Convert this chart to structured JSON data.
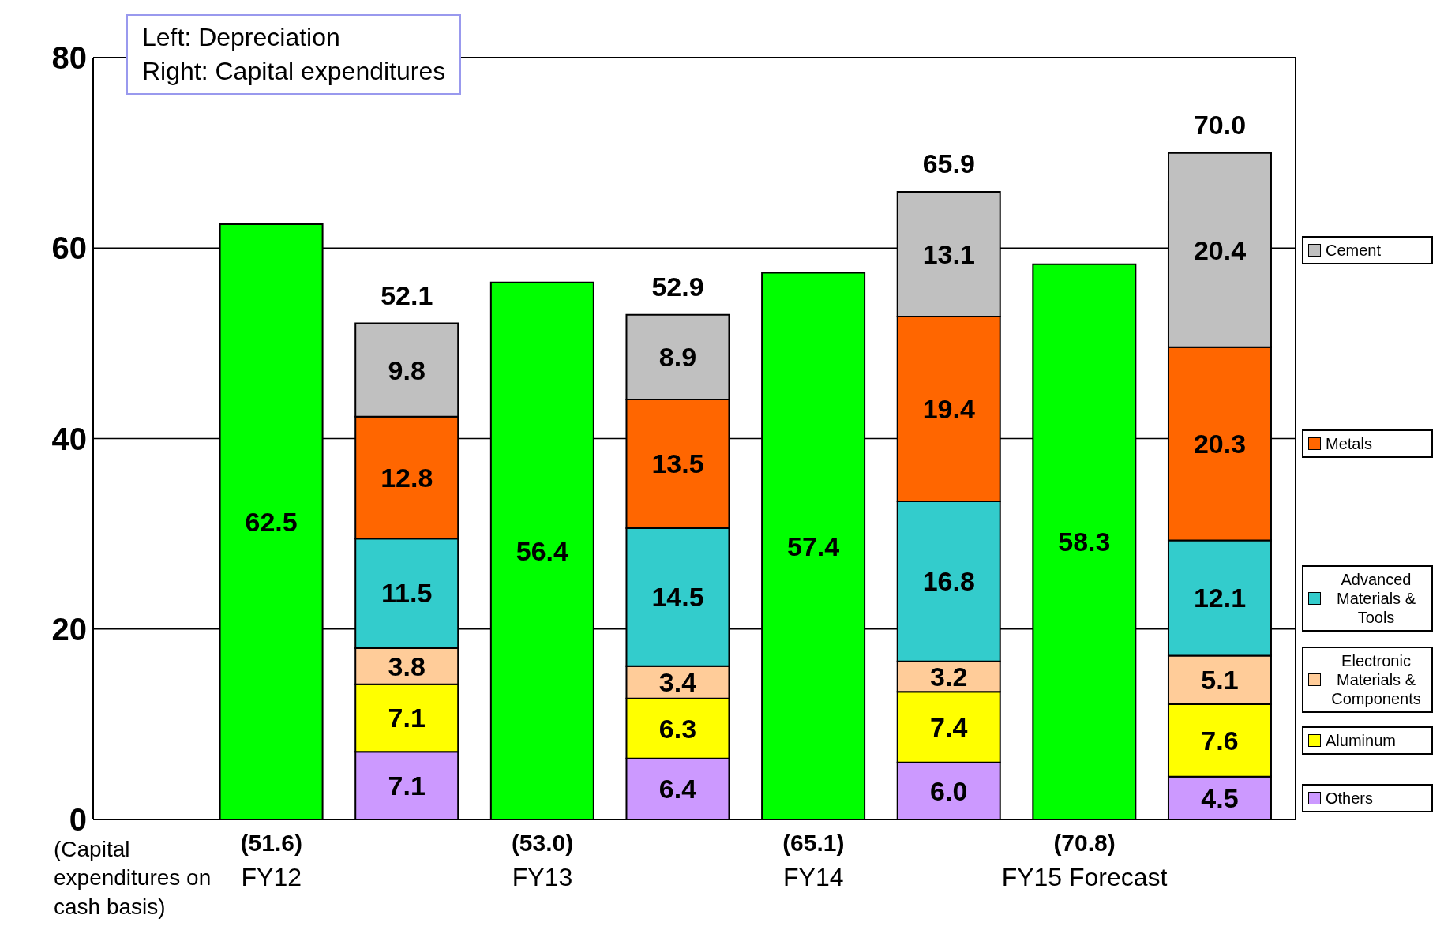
{
  "chart_data": {
    "type": "bar",
    "categories": [
      "FY12",
      null,
      "FY13",
      null,
      "FY14",
      null,
      "FY15 Forecast",
      null
    ],
    "stacked": true,
    "totals": [
      null,
      "52.1",
      null,
      "52.9",
      null,
      "65.9",
      null,
      "70.0"
    ],
    "ylim": [
      0,
      80
    ],
    "yticks": [
      0,
      20,
      40,
      60,
      80
    ],
    "grid": "y",
    "legend": "right",
    "annotations": [
      "Left: Depreciation\nRight: Capital expenditures",
      "(Capital expenditures on cash basis)",
      "(51.6)",
      "(53.0)",
      "(65.1)",
      "(70.8)"
    ],
    "series": [
      {
        "color": "#00ff00",
        "values": [
          62.5,
          null,
          56.4,
          null,
          57.4,
          null,
          58.3,
          null
        ],
        "value_labels": [
          "62.5",
          null,
          "56.4",
          null,
          "57.4",
          null,
          "58.3",
          null
        ]
      },
      {
        "name": "Others",
        "color": "#cc99ff",
        "values": [
          null,
          7.1,
          null,
          6.4,
          null,
          6.0,
          null,
          4.5
        ],
        "value_labels": [
          null,
          "7.1",
          null,
          "6.4",
          null,
          "6.0",
          null,
          "4.5"
        ]
      },
      {
        "name": "Aluminum",
        "color": "#ffff00",
        "values": [
          null,
          7.1,
          null,
          6.3,
          null,
          7.4,
          null,
          7.6
        ],
        "value_labels": [
          null,
          "7.1",
          null,
          "6.3",
          null,
          "7.4",
          null,
          "7.6"
        ]
      },
      {
        "name": "Electronic Materials & Components",
        "color": "#ffcc99",
        "values": [
          null,
          3.8,
          null,
          3.4,
          null,
          3.2,
          null,
          5.1
        ],
        "value_labels": [
          null,
          "3.8",
          null,
          "3.4",
          null,
          "3.2",
          null,
          "5.1"
        ]
      },
      {
        "name": "Advanced Materials & Tools",
        "color": "#33cccc",
        "values": [
          null,
          11.5,
          null,
          14.5,
          null,
          16.8,
          null,
          12.1
        ],
        "value_labels": [
          null,
          "11.5",
          null,
          "14.5",
          null,
          "16.8",
          null,
          "12.1"
        ]
      },
      {
        "name": "Metals",
        "color": "#ff6600",
        "values": [
          null,
          12.8,
          null,
          13.5,
          null,
          19.4,
          null,
          20.3
        ],
        "value_labels": [
          null,
          "12.8",
          null,
          "13.5",
          null,
          "19.4",
          null,
          "20.3"
        ]
      },
      {
        "name": "Cement",
        "color": "#c0c0c0",
        "values": [
          null,
          9.8,
          null,
          8.9,
          null,
          13.1,
          null,
          20.4
        ],
        "value_labels": [
          null,
          "9.8",
          null,
          "8.9",
          null,
          "13.1",
          null,
          "20.4"
        ]
      }
    ]
  }
}
